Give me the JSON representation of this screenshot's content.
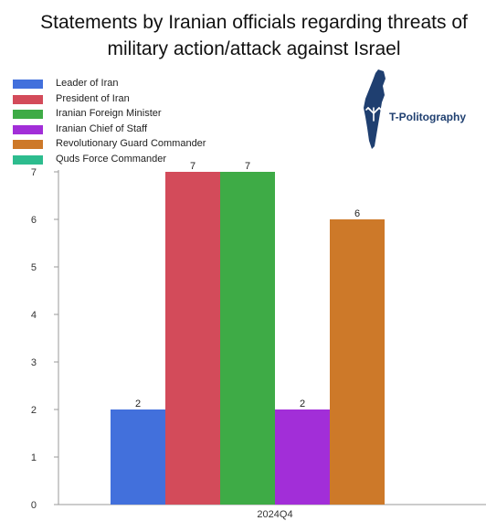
{
  "title": "Statements by Iranian officials regarding threats of military action/attack against Israel",
  "logo": {
    "text": "T-Politography",
    "icon": "israel-map-icon"
  },
  "chart_data": {
    "type": "bar",
    "title": "Statements by Iranian officials regarding threats of military action/attack against Israel",
    "xlabel": "",
    "ylabel": "",
    "categories": [
      "2024Q4"
    ],
    "ylim": [
      0,
      7
    ],
    "yticks": [
      0,
      1,
      2,
      3,
      4,
      5,
      6,
      7
    ],
    "grid": false,
    "legend_position": "top-left",
    "series": [
      {
        "name": "Leader of Iran",
        "values": [
          2
        ],
        "color": "#4270dc"
      },
      {
        "name": "President of Iran",
        "values": [
          7
        ],
        "color": "#d34b5a"
      },
      {
        "name": "Iranian Foreign Minister",
        "values": [
          7
        ],
        "color": "#3eab46"
      },
      {
        "name": "Iranian Chief of Staff",
        "values": [
          2
        ],
        "color": "#a22ed8"
      },
      {
        "name": "Revolutionary Guard Commander",
        "values": [
          6
        ],
        "color": "#cd7929"
      },
      {
        "name": "Quds Force Commander",
        "values": [
          0
        ],
        "color": "#2dbc8e"
      }
    ],
    "data_labels": [
      "2",
      "7",
      "7",
      "2",
      "6",
      ""
    ]
  }
}
